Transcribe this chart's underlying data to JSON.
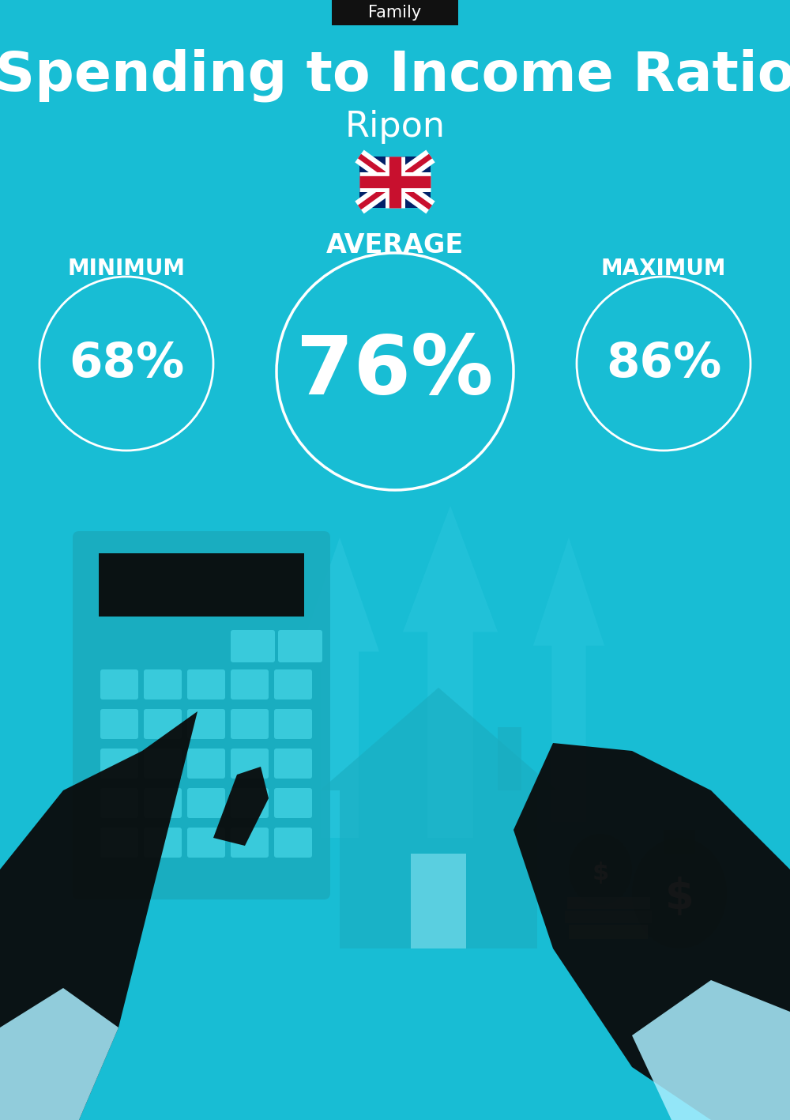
{
  "bg_color": "#18BDD4",
  "header_bg": "#111111",
  "header_text": "Family",
  "header_text_color": "#ffffff",
  "title": "Spending to Income Ratio",
  "subtitle": "Ripon",
  "title_color": "#ffffff",
  "subtitle_color": "#ffffff",
  "avg_label": "AVERAGE",
  "min_label": "MINIMUM",
  "max_label": "MAXIMUM",
  "avg_value": "76%",
  "min_value": "68%",
  "max_value": "86%",
  "label_color": "#ffffff",
  "circle_color": "#ffffff",
  "fig_width": 10.0,
  "fig_height": 14.17,
  "dpi": 100
}
